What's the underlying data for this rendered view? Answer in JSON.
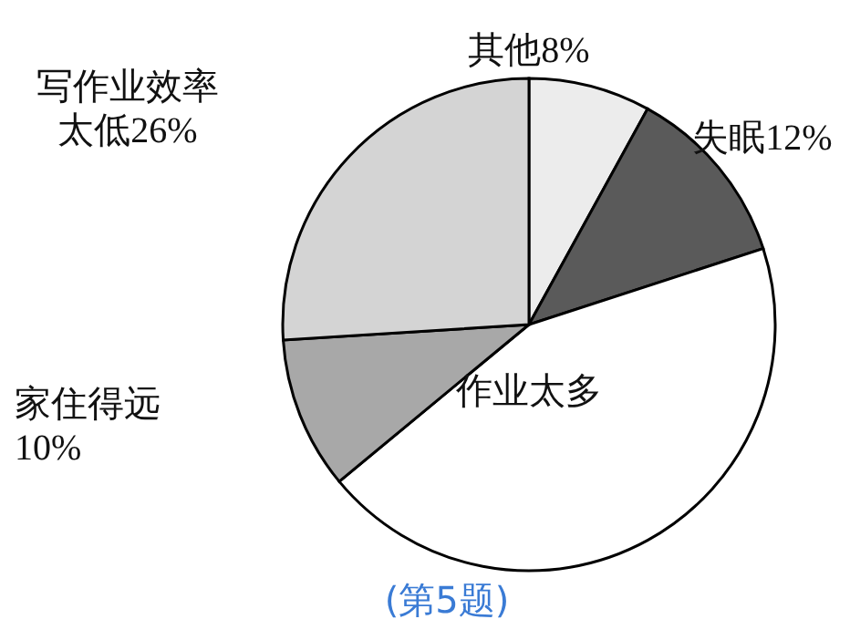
{
  "chart_data": {
    "type": "pie",
    "title": "(第5题)",
    "categories": [
      "其他",
      "失眠",
      "作业太多",
      "家住得远",
      "写作业效率太低"
    ],
    "values": [
      8,
      12,
      44,
      10,
      26
    ],
    "value_labels": [
      "8%",
      "12%",
      null,
      "10%",
      "26%"
    ],
    "colors": [
      "#ececec",
      "#5a5a5a",
      "#ffffff",
      "#a8a8a8",
      "#d4d4d4"
    ],
    "legend": false
  }
}
